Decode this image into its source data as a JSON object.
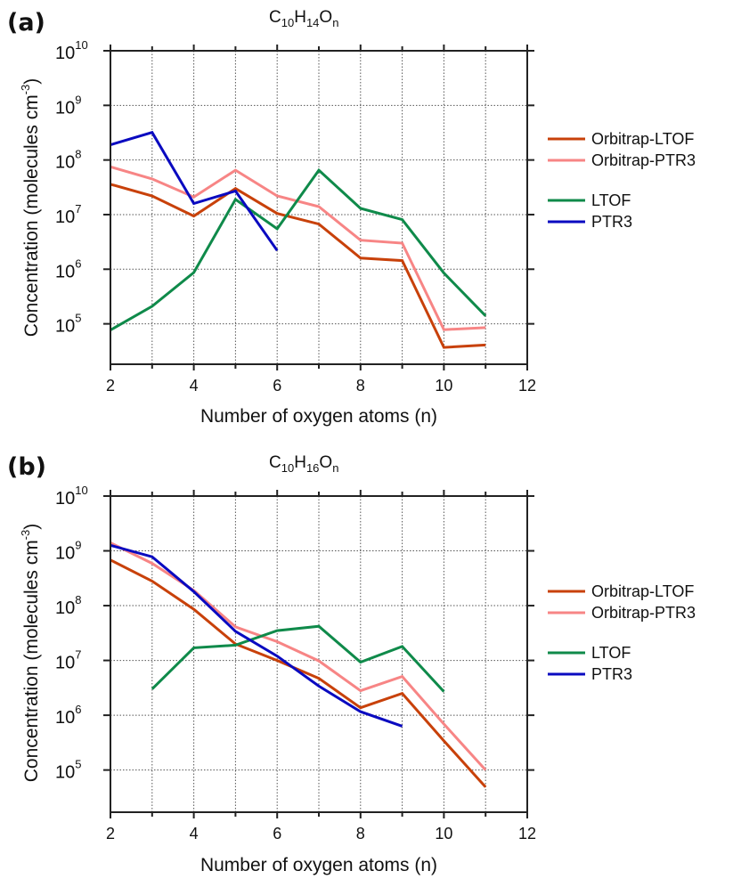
{
  "chart_data": [
    {
      "type": "line",
      "panel_label": "(a)",
      "title": {
        "base1": "C",
        "sub1": "10",
        "base2": "H",
        "sub2": "14",
        "base3": "O",
        "sub3": "n"
      },
      "xlabel": "Number of oxygen atoms (n)",
      "ylabel": "Concentration (molecules cm",
      "ylabel_exp": "-3",
      "ylabel_close": ")",
      "yscale": "log",
      "xlim": [
        2,
        12
      ],
      "ylim_log10": [
        4.26,
        10
      ],
      "xticks": [
        2,
        4,
        6,
        8,
        10,
        12
      ],
      "xminor": [
        3,
        5,
        7,
        9,
        11
      ],
      "yticks": [
        {
          "base": "10",
          "exp": "10"
        },
        {
          "base": "10",
          "exp": "9"
        },
        {
          "base": "10",
          "exp": "8"
        },
        {
          "base": "10",
          "exp": "7"
        },
        {
          "base": "10",
          "exp": "6"
        },
        {
          "base": "10",
          "exp": "5"
        }
      ],
      "ytick_exponents": [
        10,
        9,
        8,
        7,
        6,
        5
      ],
      "grid": true,
      "legend_position": "right",
      "series": [
        {
          "name": "Orbitrap-LTOF",
          "color": "#c8410a",
          "x": [
            2,
            3,
            4,
            5,
            6,
            7,
            8,
            9,
            10,
            11
          ],
          "values": [
            36000000.0,
            22000000.0,
            9400000.0,
            30000000.0,
            10500000.0,
            6700000.0,
            1600000.0,
            1440000.0,
            37000.0,
            41000.0
          ]
        },
        {
          "name": "Orbitrap-PTR3",
          "color": "#f78585",
          "x": [
            2,
            3,
            4,
            5,
            6,
            7,
            8,
            9,
            10,
            11
          ],
          "values": [
            75000000.0,
            45000000.0,
            21000000.0,
            65000000.0,
            22000000.0,
            14000000.0,
            3400000.0,
            3000000.0,
            78000.0,
            85000.0
          ]
        },
        {
          "name": "LTOF",
          "color": "#0f8a4a",
          "x": [
            2,
            3,
            4,
            5,
            6,
            7,
            8,
            9,
            10,
            11
          ],
          "values": [
            77000.0,
            210000.0,
            870000.0,
            19000000.0,
            5500000.0,
            65000000.0,
            13000000.0,
            8100000.0,
            850000.0,
            140000.0
          ]
        },
        {
          "name": "PTR3",
          "color": "#0a0ac0",
          "x": [
            2,
            3,
            4,
            5,
            6
          ],
          "values": [
            190000000.0,
            320000000.0,
            16000000.0,
            27000000.0,
            2200000.0
          ]
        }
      ]
    },
    {
      "type": "line",
      "panel_label": "(b)",
      "title": {
        "base1": "C",
        "sub1": "10",
        "base2": "H",
        "sub2": "16",
        "base3": "O",
        "sub3": "n"
      },
      "xlabel": "Number of oxygen atoms (n)",
      "ylabel": "Concentration (molecules cm",
      "ylabel_exp": "-3",
      "ylabel_close": ")",
      "yscale": "log",
      "xlim": [
        2,
        12
      ],
      "ylim_log10": [
        4.23,
        10
      ],
      "xticks": [
        2,
        4,
        6,
        8,
        10,
        12
      ],
      "xminor": [
        3,
        5,
        7,
        9,
        11
      ],
      "yticks": [
        {
          "base": "10",
          "exp": "10"
        },
        {
          "base": "10",
          "exp": "9"
        },
        {
          "base": "10",
          "exp": "8"
        },
        {
          "base": "10",
          "exp": "7"
        },
        {
          "base": "10",
          "exp": "6"
        },
        {
          "base": "10",
          "exp": "5"
        }
      ],
      "ytick_exponents": [
        10,
        9,
        8,
        7,
        6,
        5
      ],
      "grid": true,
      "legend_position": "right",
      "series": [
        {
          "name": "Orbitrap-LTOF",
          "color": "#c8410a",
          "x": [
            2,
            3,
            4,
            5,
            6,
            7,
            8,
            9,
            10,
            11
          ],
          "values": [
            680000000.0,
            280000000.0,
            86000000.0,
            20000000.0,
            10000000.0,
            4700000.0,
            1370000.0,
            2500000.0,
            340000.0,
            49000.0
          ]
        },
        {
          "name": "Orbitrap-PTR3",
          "color": "#f78585",
          "x": [
            2,
            3,
            4,
            5,
            6,
            7,
            8,
            9,
            10,
            11
          ],
          "values": [
            1400000000.0,
            590000000.0,
            190000000.0,
            41000000.0,
            22000000.0,
            9800000.0,
            2800000.0,
            5100000.0,
            690000.0,
            100000.0
          ]
        },
        {
          "name": "LTOF",
          "color": "#0f8a4a",
          "x": [
            3,
            4,
            5,
            6,
            7,
            8,
            9,
            10
          ],
          "values": [
            3000000.0,
            17000000.0,
            19000000.0,
            35000000.0,
            42000000.0,
            9300000.0,
            18000000.0,
            2700000.0
          ]
        },
        {
          "name": "PTR3",
          "color": "#0a0ac0",
          "x": [
            2,
            3,
            4,
            5,
            6,
            7,
            8,
            9
          ],
          "values": [
            1260000000.0,
            780000000.0,
            180000000.0,
            34000000.0,
            12000000.0,
            3400000.0,
            1160000.0,
            630000.0
          ]
        }
      ]
    }
  ]
}
